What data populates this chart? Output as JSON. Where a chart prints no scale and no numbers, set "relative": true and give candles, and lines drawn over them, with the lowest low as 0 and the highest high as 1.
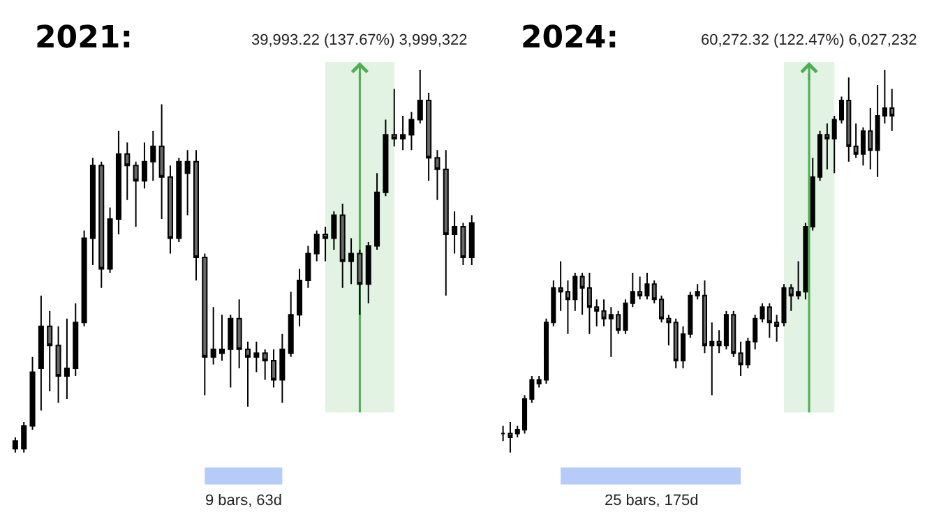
{
  "chart_data": [
    {
      "type": "candlestick",
      "title": "2021:",
      "relative": true,
      "tick_labels": false,
      "grid": false,
      "legend": false,
      "categories": [
        null,
        null,
        null,
        null,
        null,
        null,
        null,
        null,
        null,
        null,
        null,
        null,
        null,
        null,
        null,
        null,
        null,
        null,
        null,
        null,
        null,
        null,
        null,
        null,
        null,
        null,
        null,
        null,
        null,
        null,
        null,
        null,
        null,
        null,
        null,
        null,
        null,
        null,
        null,
        null,
        null,
        null,
        null,
        null,
        null,
        null,
        null,
        null,
        null,
        null,
        null,
        null,
        null,
        null
      ],
      "ohlc": [
        [
          0.01,
          0.04,
          0,
          0.03
        ],
        [
          0.01,
          0.08,
          0,
          0.07
        ],
        [
          0.07,
          0.25,
          0.06,
          0.21
        ],
        [
          0.22,
          0.41,
          0.11,
          0.33
        ],
        [
          0.33,
          0.37,
          0.16,
          0.28
        ],
        [
          0.28,
          0.33,
          0.13,
          0.2
        ],
        [
          0.2,
          0.35,
          0.14,
          0.22
        ],
        [
          0.22,
          0.39,
          0.2,
          0.34
        ],
        [
          0.34,
          0.58,
          0.33,
          0.56
        ],
        [
          0.56,
          0.77,
          0.49,
          0.75
        ],
        [
          0.75,
          0.76,
          0.43,
          0.48
        ],
        [
          0.48,
          0.64,
          0.47,
          0.61
        ],
        [
          0.61,
          0.84,
          0.57,
          0.78
        ],
        [
          0.78,
          0.81,
          0.66,
          0.75
        ],
        [
          0.75,
          0.76,
          0.59,
          0.71
        ],
        [
          0.71,
          0.81,
          0.69,
          0.76
        ],
        [
          0.76,
          0.84,
          0.71,
          0.8
        ],
        [
          0.8,
          0.91,
          0.61,
          0.72
        ],
        [
          0.72,
          0.75,
          0.52,
          0.56
        ],
        [
          0.56,
          0.77,
          0.55,
          0.76
        ],
        [
          0.73,
          0.79,
          0.62,
          0.76
        ],
        [
          0.76,
          0.79,
          0.45,
          0.51
        ],
        [
          0.51,
          0.52,
          0.15,
          0.25
        ],
        [
          0.25,
          0.38,
          0.23,
          0.27
        ],
        [
          0.26,
          0.36,
          0.24,
          0.27
        ],
        [
          0.27,
          0.36,
          0.17,
          0.35
        ],
        [
          0.35,
          0.4,
          0.22,
          0.27
        ],
        [
          0.27,
          0.29,
          0.12,
          0.25
        ],
        [
          0.25,
          0.29,
          0.21,
          0.26
        ],
        [
          0.26,
          0.27,
          0.19,
          0.24
        ],
        [
          0.24,
          0.27,
          0.17,
          0.19
        ],
        [
          0.19,
          0.31,
          0.13,
          0.27
        ],
        [
          0.26,
          0.42,
          0.25,
          0.36
        ],
        [
          0.36,
          0.48,
          0.33,
          0.45
        ],
        [
          0.45,
          0.54,
          0.43,
          0.52
        ],
        [
          0.52,
          0.58,
          0.5,
          0.57
        ],
        [
          0.57,
          0.59,
          0.5,
          0.56
        ],
        [
          0.56,
          0.63,
          0.53,
          0.62
        ],
        [
          0.62,
          0.65,
          0.43,
          0.5
        ],
        [
          0.5,
          0.56,
          0.44,
          0.52
        ],
        [
          0.52,
          0.53,
          0.36,
          0.44
        ],
        [
          0.44,
          0.55,
          0.39,
          0.54
        ],
        [
          0.54,
          0.73,
          0.53,
          0.68
        ],
        [
          0.68,
          0.87,
          0.67,
          0.83
        ],
        [
          0.83,
          0.95,
          0.8,
          0.82
        ],
        [
          0.82,
          0.88,
          0.79,
          0.83
        ],
        [
          0.83,
          0.89,
          0.79,
          0.87
        ],
        [
          0.87,
          1.0,
          0.86,
          0.92
        ],
        [
          0.92,
          0.94,
          0.71,
          0.77
        ],
        [
          0.77,
          0.79,
          0.66,
          0.74
        ],
        [
          0.74,
          0.79,
          0.41,
          0.57
        ],
        [
          0.57,
          0.63,
          0.52,
          0.59
        ],
        [
          0.59,
          0.6,
          0.49,
          0.51
        ],
        [
          0.51,
          0.62,
          0.49,
          0.6
        ]
      ],
      "annotations": [
        "39,993.22 (137.67%) 3,999,322",
        "9 bars, 63d"
      ]
    },
    {
      "type": "candlestick",
      "title": "2024:",
      "relative": true,
      "tick_labels": false,
      "grid": false,
      "legend": false,
      "categories": [
        null,
        null,
        null,
        null,
        null,
        null,
        null,
        null,
        null,
        null,
        null,
        null,
        null,
        null,
        null,
        null,
        null,
        null,
        null,
        null,
        null,
        null,
        null,
        null,
        null,
        null,
        null,
        null,
        null,
        null,
        null,
        null,
        null,
        null,
        null,
        null,
        null,
        null,
        null,
        null,
        null,
        null,
        null,
        null,
        null,
        null,
        null,
        null,
        null,
        null,
        null,
        null,
        null,
        null,
        null
      ],
      "ohlc": [
        [
          0.05,
          0.07,
          0.03,
          0.05
        ],
        [
          0.05,
          0.08,
          0,
          0.04
        ],
        [
          0.05,
          0.07,
          0.04,
          0.06
        ],
        [
          0.06,
          0.15,
          0.05,
          0.14
        ],
        [
          0.14,
          0.2,
          0.13,
          0.19
        ],
        [
          0.18,
          0.2,
          0.17,
          0.19
        ],
        [
          0.19,
          0.35,
          0.18,
          0.34
        ],
        [
          0.34,
          0.45,
          0.33,
          0.43
        ],
        [
          0.43,
          0.5,
          0.37,
          0.42
        ],
        [
          0.42,
          0.45,
          0.31,
          0.4
        ],
        [
          0.4,
          0.47,
          0.37,
          0.46
        ],
        [
          0.46,
          0.47,
          0.36,
          0.43
        ],
        [
          0.43,
          0.47,
          0.31,
          0.38
        ],
        [
          0.38,
          0.4,
          0.33,
          0.37
        ],
        [
          0.37,
          0.4,
          0.33,
          0.35
        ],
        [
          0.35,
          0.38,
          0.25,
          0.36
        ],
        [
          0.36,
          0.37,
          0.31,
          0.32
        ],
        [
          0.32,
          0.4,
          0.31,
          0.39
        ],
        [
          0.39,
          0.47,
          0.38,
          0.42
        ],
        [
          0.42,
          0.46,
          0.4,
          0.41
        ],
        [
          0.41,
          0.47,
          0.4,
          0.44
        ],
        [
          0.44,
          0.45,
          0.39,
          0.4
        ],
        [
          0.4,
          0.41,
          0.34,
          0.35
        ],
        [
          0.35,
          0.36,
          0.28,
          0.34
        ],
        [
          0.34,
          0.35,
          0.22,
          0.24
        ],
        [
          0.24,
          0.33,
          0.22,
          0.31
        ],
        [
          0.31,
          0.42,
          0.3,
          0.41
        ],
        [
          0.41,
          0.44,
          0.4,
          0.42
        ],
        [
          0.41,
          0.45,
          0.26,
          0.28
        ],
        [
          0.28,
          0.34,
          0.15,
          0.29
        ],
        [
          0.29,
          0.32,
          0.26,
          0.28
        ],
        [
          0.28,
          0.37,
          0.27,
          0.36
        ],
        [
          0.36,
          0.37,
          0.25,
          0.26
        ],
        [
          0.26,
          0.29,
          0.2,
          0.23
        ],
        [
          0.23,
          0.3,
          0.22,
          0.29
        ],
        [
          0.29,
          0.36,
          0.27,
          0.35
        ],
        [
          0.35,
          0.39,
          0.34,
          0.38
        ],
        [
          0.38,
          0.39,
          0.3,
          0.34
        ],
        [
          0.34,
          0.36,
          0.29,
          0.33
        ],
        [
          0.34,
          0.44,
          0.33,
          0.43
        ],
        [
          0.43,
          0.44,
          0.37,
          0.41
        ],
        [
          0.41,
          0.5,
          0.4,
          0.42
        ],
        [
          0.42,
          0.6,
          0.4,
          0.59
        ],
        [
          0.59,
          0.77,
          0.58,
          0.72
        ],
        [
          0.72,
          0.84,
          0.71,
          0.83
        ],
        [
          0.83,
          0.86,
          0.74,
          0.82
        ],
        [
          0.82,
          0.88,
          0.73,
          0.87
        ],
        [
          0.87,
          0.93,
          0.86,
          0.92
        ],
        [
          0.92,
          0.98,
          0.76,
          0.8
        ],
        [
          0.8,
          0.86,
          0.77,
          0.78
        ],
        [
          0.78,
          0.85,
          0.75,
          0.84
        ],
        [
          0.84,
          0.9,
          0.74,
          0.79
        ],
        [
          0.79,
          0.96,
          0.72,
          0.88
        ],
        [
          0.88,
          1.0,
          0.86,
          0.9
        ],
        [
          0.9,
          0.95,
          0.84,
          0.88
        ]
      ],
      "annotations": [
        "60,272.32 (122.47%) 6,027,232",
        "25 bars, 175d"
      ]
    }
  ]
}
